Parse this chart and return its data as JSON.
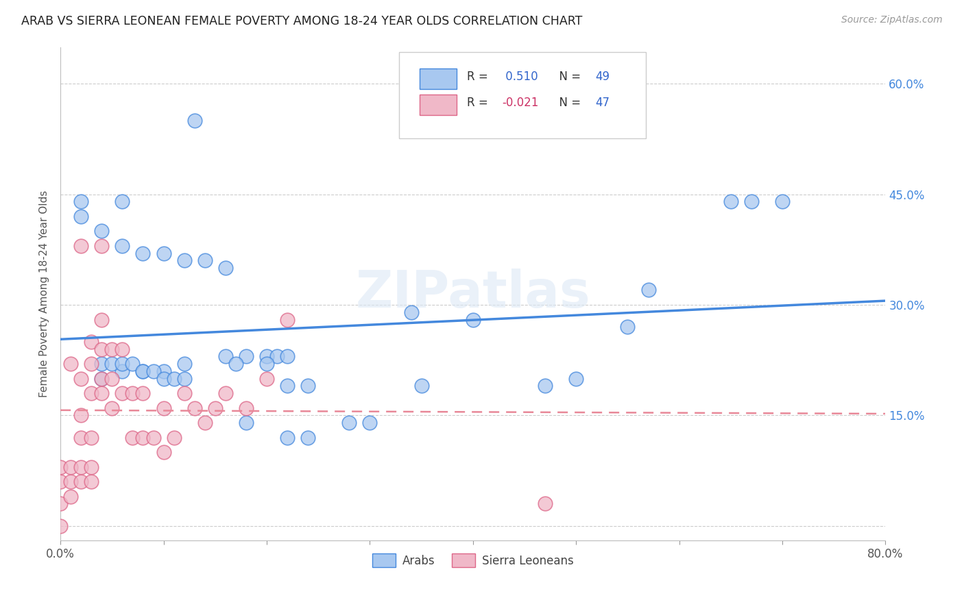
{
  "title": "ARAB VS SIERRA LEONEAN FEMALE POVERTY AMONG 18-24 YEAR OLDS CORRELATION CHART",
  "source": "Source: ZipAtlas.com",
  "ylabel": "Female Poverty Among 18-24 Year Olds",
  "xlim": [
    0,
    0.8
  ],
  "ylim": [
    -0.02,
    0.65
  ],
  "xtick_positions": [
    0.0,
    0.1,
    0.2,
    0.3,
    0.4,
    0.5,
    0.6,
    0.7,
    0.8
  ],
  "xticklabels": [
    "0.0%",
    "",
    "",
    "",
    "",
    "",
    "",
    "",
    "80.0%"
  ],
  "ytick_positions": [
    0.0,
    0.15,
    0.3,
    0.45,
    0.6
  ],
  "yticklabels_right": [
    "",
    "15.0%",
    "30.0%",
    "45.0%",
    "60.0%"
  ],
  "arab_R": 0.51,
  "arab_N": 49,
  "sl_R": -0.021,
  "sl_N": 47,
  "arab_color": "#a8c8f0",
  "sl_color": "#f0b8c8",
  "arab_line_color": "#4488dd",
  "sl_line_color": "#e88898",
  "watermark": "ZIPatlas",
  "arab_x": [
    0.13,
    0.02,
    0.06,
    0.02,
    0.04,
    0.06,
    0.08,
    0.1,
    0.12,
    0.14,
    0.16,
    0.18,
    0.2,
    0.21,
    0.22,
    0.16,
    0.17,
    0.2,
    0.12,
    0.1,
    0.08,
    0.06,
    0.04,
    0.04,
    0.05,
    0.06,
    0.07,
    0.08,
    0.09,
    0.1,
    0.11,
    0.12,
    0.22,
    0.24,
    0.35,
    0.47,
    0.5,
    0.57,
    0.65,
    0.67,
    0.34,
    0.4,
    0.55,
    0.28,
    0.3,
    0.18,
    0.22,
    0.24,
    0.7
  ],
  "arab_y": [
    0.55,
    0.44,
    0.44,
    0.42,
    0.4,
    0.38,
    0.37,
    0.37,
    0.36,
    0.36,
    0.35,
    0.23,
    0.23,
    0.23,
    0.23,
    0.23,
    0.22,
    0.22,
    0.22,
    0.21,
    0.21,
    0.21,
    0.2,
    0.22,
    0.22,
    0.22,
    0.22,
    0.21,
    0.21,
    0.2,
    0.2,
    0.2,
    0.19,
    0.19,
    0.19,
    0.19,
    0.2,
    0.32,
    0.44,
    0.44,
    0.29,
    0.28,
    0.27,
    0.14,
    0.14,
    0.14,
    0.12,
    0.12,
    0.44
  ],
  "sl_x": [
    0.0,
    0.0,
    0.0,
    0.0,
    0.01,
    0.01,
    0.01,
    0.01,
    0.02,
    0.02,
    0.02,
    0.02,
    0.02,
    0.02,
    0.03,
    0.03,
    0.03,
    0.03,
    0.03,
    0.03,
    0.04,
    0.04,
    0.04,
    0.04,
    0.04,
    0.05,
    0.05,
    0.05,
    0.06,
    0.06,
    0.07,
    0.07,
    0.08,
    0.08,
    0.09,
    0.1,
    0.1,
    0.11,
    0.12,
    0.13,
    0.14,
    0.15,
    0.16,
    0.18,
    0.2,
    0.22,
    0.47
  ],
  "sl_y": [
    0.0,
    0.03,
    0.06,
    0.08,
    0.04,
    0.06,
    0.08,
    0.22,
    0.06,
    0.08,
    0.12,
    0.15,
    0.2,
    0.38,
    0.06,
    0.08,
    0.12,
    0.18,
    0.22,
    0.25,
    0.18,
    0.2,
    0.24,
    0.28,
    0.38,
    0.16,
    0.2,
    0.24,
    0.18,
    0.24,
    0.12,
    0.18,
    0.12,
    0.18,
    0.12,
    0.1,
    0.16,
    0.12,
    0.18,
    0.16,
    0.14,
    0.16,
    0.18,
    0.16,
    0.2,
    0.28,
    0.03
  ]
}
